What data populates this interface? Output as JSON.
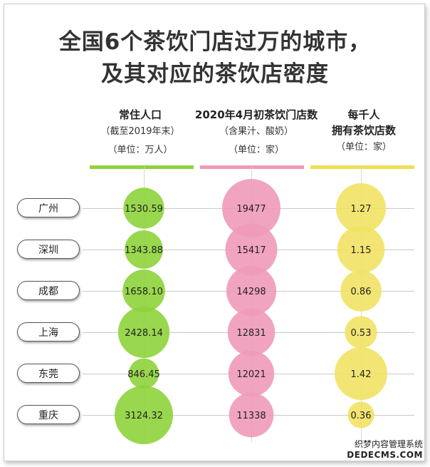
{
  "title_line1": "全国6个茶饮门店过万的城市，",
  "title_line2": "及其对应的茶饮店密度",
  "columns": [
    {
      "line1": "常住人口",
      "line2": "",
      "sub1": "（截至2019年末）",
      "sub2": "（单位：万人）",
      "color": "#8ed33b"
    },
    {
      "line1": "2020年4月初茶饮门店数",
      "line2": "",
      "sub1": "（含果汁、酸奶）",
      "sub2": "（单位：家）",
      "color": "#ef9ab8"
    },
    {
      "line1": "每千人",
      "line2": "拥有茶饮店数",
      "sub1": "",
      "sub2": "（单位：家）",
      "color": "#f0de55"
    }
  ],
  "chart_data": {
    "type": "table",
    "categories": [
      "广州",
      "深圳",
      "成都",
      "上海",
      "东莞",
      "重庆"
    ],
    "series": [
      {
        "name": "常住人口",
        "values": [
          1530.59,
          1343.88,
          1658.1,
          2428.14,
          846.45,
          3124.32
        ],
        "labels": [
          "1530.59",
          "1343.88",
          "1658.10",
          "2428.14",
          "846.45",
          "3124.32"
        ],
        "color": "#8ed33b"
      },
      {
        "name": "2020年4月初茶饮门店数",
        "values": [
          19477,
          15417,
          14298,
          12831,
          12021,
          11338
        ],
        "labels": [
          "19477",
          "15417",
          "14298",
          "12831",
          "12021",
          "11338"
        ],
        "color": "#ef9ab8"
      },
      {
        "name": "每千人拥有茶饮店数",
        "values": [
          1.27,
          1.15,
          0.86,
          0.53,
          1.42,
          0.36
        ],
        "labels": [
          "1.27",
          "1.15",
          "0.86",
          "0.53",
          "1.42",
          "0.36"
        ],
        "color": "#f2e264"
      }
    ]
  },
  "watermark_line1": "织梦内容管理系统",
  "watermark_line2": "DEDECMS.COM"
}
